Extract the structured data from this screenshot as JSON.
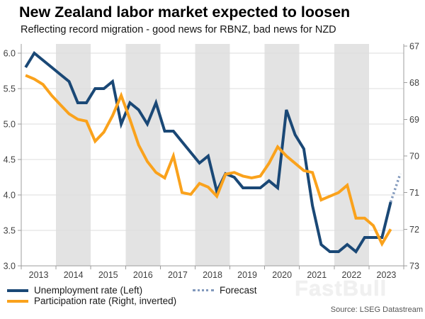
{
  "header": {
    "title": "New Zealand labor market expected to loosen",
    "subtitle": "Reflecting record migration - good news for RBNZ, bad news for NZD"
  },
  "source": "Source: LSEG Datastream",
  "watermark": "FastBull",
  "colors": {
    "unemployment": "#1a4876",
    "participation": "#faa21c",
    "forecast": "#8299bc",
    "band": "#e3e3e3",
    "gridline": "#dcdcdc",
    "axis": "#9d9d9d",
    "tick_label": "#404040"
  },
  "chart_data": {
    "type": "line",
    "title": "New Zealand labor market expected to loosen",
    "subtitle": "Reflecting record migration - good news for RBNZ, bad news for NZD",
    "frequency": "quarterly",
    "x_start_year": 2013,
    "x_end_year": 2024,
    "x_tick_labels": [
      "2013",
      "2014",
      "2015",
      "2016",
      "2017",
      "2018",
      "2019",
      "2020",
      "2021",
      "2022",
      "2023"
    ],
    "shaded_years": [
      2014,
      2016,
      2018,
      2020,
      2022
    ],
    "left_axis": {
      "min": 3.0,
      "max": 6.0,
      "ticks": [
        3.0,
        3.5,
        4.0,
        4.5,
        5.0,
        5.5,
        6.0
      ],
      "inverted": false
    },
    "right_axis": {
      "min": 67,
      "max": 73,
      "ticks": [
        67,
        68,
        69,
        70,
        71,
        72,
        73
      ],
      "inverted": true
    },
    "series": [
      {
        "name": "Unemployment rate (Left)",
        "axis": "left",
        "style": "solid",
        "color": "#1a4876",
        "start": "2013Q1",
        "values": [
          5.8,
          6.0,
          5.9,
          5.8,
          5.7,
          5.6,
          5.3,
          5.3,
          5.5,
          5.5,
          5.6,
          5.0,
          5.3,
          5.2,
          5.0,
          5.3,
          4.9,
          4.9,
          4.75,
          4.6,
          4.45,
          4.55,
          4.05,
          4.3,
          4.25,
          4.1,
          4.1,
          4.1,
          4.2,
          4.1,
          5.2,
          4.85,
          4.65,
          3.85,
          3.3,
          3.2,
          3.2,
          3.3,
          3.2,
          3.4,
          3.4,
          3.4,
          3.9
        ]
      },
      {
        "name": "Participation rate (Right, inverted)",
        "axis": "right",
        "style": "solid",
        "color": "#faa21c",
        "start": "2013Q1",
        "values": [
          67.8,
          67.9,
          68.05,
          68.35,
          68.6,
          68.85,
          69.0,
          69.05,
          69.6,
          69.35,
          68.9,
          68.35,
          69.0,
          69.7,
          70.15,
          70.45,
          70.6,
          70.0,
          71.0,
          71.05,
          70.75,
          70.85,
          71.1,
          70.5,
          70.45,
          70.55,
          70.6,
          70.55,
          70.2,
          69.75,
          70.0,
          70.2,
          70.4,
          70.45,
          71.2,
          71.1,
          71.0,
          70.8,
          71.7,
          71.7,
          71.9,
          72.4,
          72.0
        ]
      },
      {
        "name": "Forecast",
        "axis": "left",
        "style": "dotted",
        "color": "#8299bc",
        "points": [
          {
            "year": 2023.625,
            "value": 3.9
          },
          {
            "year": 2023.9,
            "value": 4.3
          }
        ]
      }
    ]
  },
  "legend": {
    "unemployment_label": "Unemployment rate (Left)",
    "participation_label": "Participation rate (Right, inverted)",
    "forecast_label": "Forecast"
  }
}
